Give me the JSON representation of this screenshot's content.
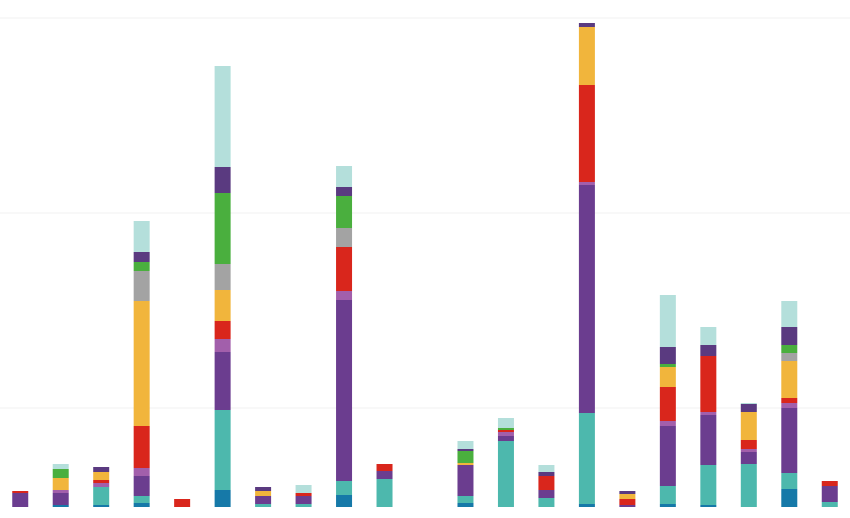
{
  "chart_data": {
    "type": "stacked_bar",
    "categories": [
      null,
      null,
      null,
      null,
      null,
      null,
      null,
      null,
      null,
      null,
      null,
      null,
      null,
      null,
      null,
      null,
      null,
      null,
      null,
      null,
      null
    ],
    "series": [
      {
        "color": "#1679a8",
        "values": [
          0,
          2,
          2,
          4,
          0,
          17,
          0,
          0,
          12,
          0,
          0,
          4,
          0,
          0,
          3,
          0,
          3,
          2,
          0,
          18,
          0
        ]
      },
      {
        "color": "#4db8ad",
        "values": [
          0,
          0,
          18,
          7,
          0,
          80,
          3,
          3,
          14,
          28,
          0,
          7,
          66,
          9,
          91,
          0,
          18,
          40,
          43,
          16,
          5
        ]
      },
      {
        "color": "#6b3d8f",
        "values": [
          14,
          12,
          0,
          20,
          0,
          58,
          8,
          8,
          181,
          8,
          0,
          31,
          5,
          8,
          228,
          2,
          60,
          50,
          12,
          65,
          16
        ]
      },
      {
        "color": "#a25fab",
        "values": [
          0,
          3,
          4,
          8,
          0,
          13,
          0,
          0,
          9,
          0,
          0,
          0,
          4,
          0,
          3,
          0,
          5,
          3,
          3,
          5,
          0
        ]
      },
      {
        "color": "#d9261c",
        "values": [
          2,
          0,
          3,
          42,
          8,
          18,
          0,
          3,
          44,
          7,
          0,
          0,
          2,
          14,
          97,
          6,
          34,
          56,
          9,
          5,
          5
        ]
      },
      {
        "color": "#f1b53c",
        "values": [
          0,
          12,
          8,
          125,
          0,
          31,
          5,
          0,
          0,
          0,
          0,
          2,
          0,
          0,
          58,
          5,
          20,
          0,
          28,
          37,
          0
        ]
      },
      {
        "color": "#a3a3a3",
        "values": [
          0,
          0,
          0,
          30,
          0,
          26,
          0,
          0,
          19,
          0,
          0,
          0,
          0,
          0,
          0,
          0,
          0,
          0,
          0,
          8,
          0
        ]
      },
      {
        "color": "#4aaf3e",
        "values": [
          0,
          9,
          0,
          9,
          0,
          71,
          0,
          0,
          32,
          0,
          0,
          12,
          2,
          0,
          0,
          0,
          3,
          0,
          0,
          8,
          0
        ]
      },
      {
        "color": "#5a3a80",
        "values": [
          0,
          0,
          5,
          10,
          0,
          26,
          4,
          0,
          9,
          0,
          0,
          2,
          0,
          4,
          4,
          3,
          17,
          11,
          8,
          18,
          0
        ]
      },
      {
        "color": "#b4dfdb",
        "values": [
          0,
          5,
          0,
          31,
          0,
          101,
          0,
          8,
          21,
          0,
          0,
          8,
          10,
          7,
          0,
          0,
          52,
          18,
          1,
          26,
          0
        ]
      }
    ],
    "ylim": [
      0,
      489
    ],
    "yticks": [
      99,
      294,
      489
    ],
    "grid": true
  }
}
